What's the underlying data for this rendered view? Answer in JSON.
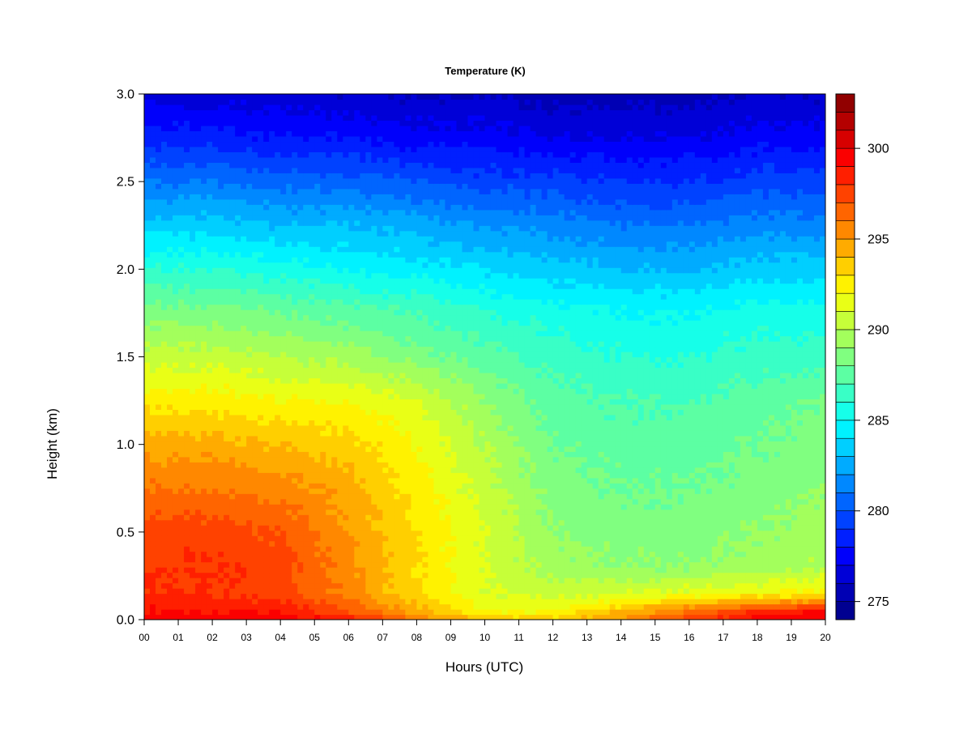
{
  "chart_data": {
    "type": "heatmap",
    "title": "Temperature (K)",
    "xlabel": "Hours (UTC)",
    "ylabel": "Height (km)",
    "x_ticks": [
      "00",
      "01",
      "02",
      "03",
      "04",
      "05",
      "06",
      "07",
      "08",
      "09",
      "10",
      "11",
      "12",
      "13",
      "14",
      "15",
      "16",
      "17",
      "18",
      "19",
      "20"
    ],
    "y_ticks": [
      "0.0",
      "0.5",
      "1.0",
      "1.5",
      "2.0",
      "2.5",
      "3.0"
    ],
    "xlim": [
      0,
      20
    ],
    "ylim": [
      0,
      3.0
    ],
    "colorbar": {
      "ticks": [
        "275",
        "280",
        "285",
        "290",
        "295",
        "300"
      ],
      "range": [
        274,
        303
      ],
      "levels": 29,
      "colormap": "jet"
    },
    "hours": [
      0,
      2,
      4,
      6,
      8,
      10,
      12,
      14,
      16,
      18,
      20
    ],
    "heights_km": [
      0.0,
      0.05,
      0.15,
      0.3,
      0.5,
      0.75,
      1.0,
      1.25,
      1.5,
      1.75,
      2.0,
      2.25,
      2.5,
      2.75,
      3.0
    ],
    "temperature_K": [
      [
        300,
        300,
        300,
        298.5,
        296,
        294,
        293.5,
        295.5,
        297.5,
        299.5,
        300
      ],
      [
        299,
        299,
        299,
        297,
        294.5,
        292,
        292,
        294,
        296,
        298,
        299
      ],
      [
        298,
        298,
        297.5,
        295.5,
        293,
        291,
        290.5,
        291,
        291.5,
        292,
        292.5
      ],
      [
        298,
        298,
        297.5,
        295.5,
        293,
        291,
        289.5,
        289,
        289,
        289.5,
        290
      ],
      [
        297.5,
        297.5,
        297,
        295,
        293,
        291,
        289,
        288.5,
        288.5,
        289,
        289.5
      ],
      [
        296,
        296,
        295.5,
        294.5,
        292.5,
        290.5,
        288.5,
        288,
        288,
        288.5,
        289
      ],
      [
        294.5,
        294.5,
        294,
        293.5,
        292,
        290,
        288,
        287.5,
        287.5,
        288,
        288.5
      ],
      [
        292.5,
        292.5,
        292,
        292,
        291,
        289,
        287.5,
        287,
        287,
        287.5,
        288
      ],
      [
        290.5,
        290.5,
        290,
        289.5,
        288.5,
        287.5,
        286.5,
        286,
        286,
        286.5,
        286.5
      ],
      [
        288.5,
        288.5,
        288,
        287.5,
        287,
        286,
        285.5,
        285,
        285,
        285.5,
        285.5
      ],
      [
        286,
        286,
        285.5,
        285,
        284.5,
        284,
        283.5,
        283,
        283,
        283.5,
        283.5
      ],
      [
        283.5,
        283.5,
        283,
        283,
        282.5,
        282,
        281.5,
        281,
        281,
        281.5,
        281.5
      ],
      [
        281,
        281,
        280.5,
        280.5,
        280,
        279.5,
        279.5,
        279,
        279,
        279.5,
        279.5
      ],
      [
        278.5,
        278.5,
        278,
        278,
        277.5,
        277.5,
        277,
        277,
        277,
        277.5,
        277.5
      ],
      [
        276.5,
        276.5,
        276.5,
        276,
        276,
        276,
        275.5,
        275.5,
        275.5,
        276,
        276
      ]
    ]
  }
}
